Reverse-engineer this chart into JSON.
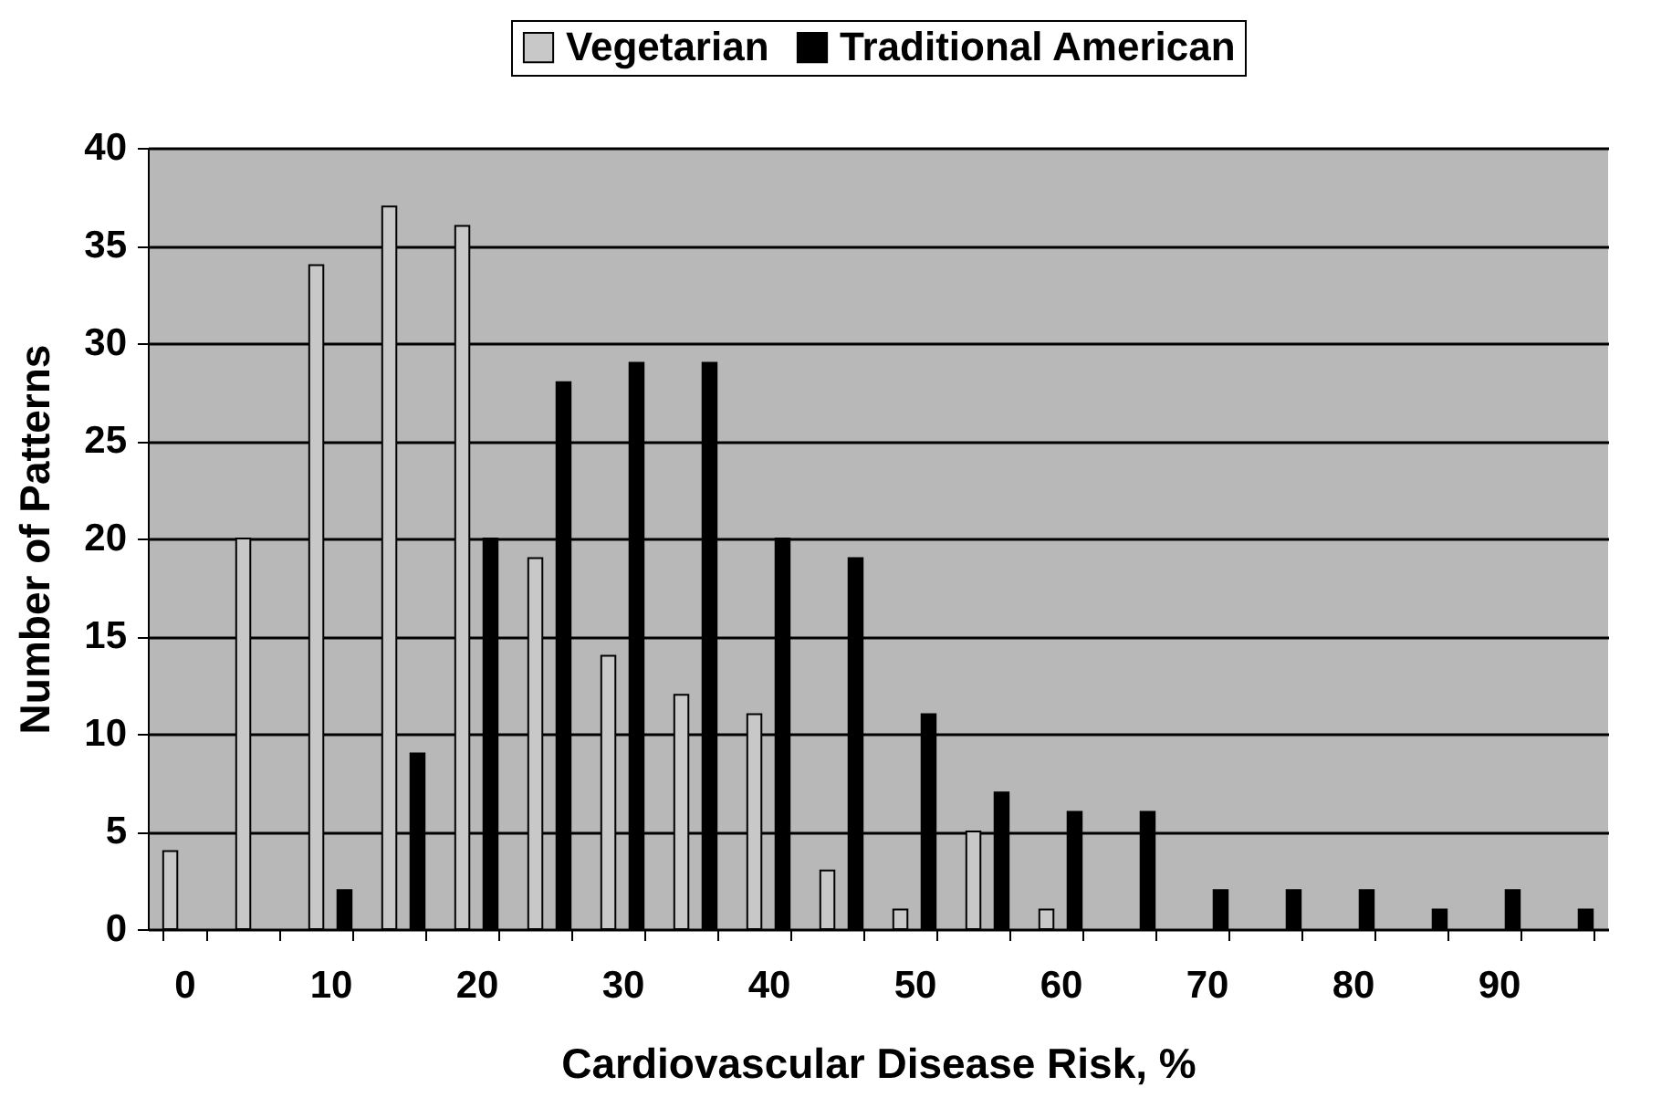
{
  "chart_data": {
    "type": "bar",
    "xlabel": "Cardiovascular Disease Risk, %",
    "ylabel": "Number of Patterns",
    "categories": [
      "0",
      null,
      "10",
      null,
      "20",
      null,
      "30",
      null,
      "40",
      null,
      "50",
      null,
      "60",
      null,
      "70",
      null,
      "80",
      null,
      "90",
      null
    ],
    "series": [
      {
        "name": "Vegetarian",
        "color": "#c8c8c8",
        "values": [
          4,
          20,
          34,
          37,
          36,
          19,
          14,
          12,
          11,
          3,
          1,
          5,
          1,
          null,
          null,
          null,
          null,
          null,
          null,
          null
        ]
      },
      {
        "name": "Traditional American",
        "color": "#000000",
        "values": [
          null,
          null,
          2,
          9,
          20,
          28,
          29,
          29,
          20,
          19,
          11,
          7,
          6,
          6,
          2,
          2,
          2,
          1,
          2,
          1
        ]
      }
    ],
    "ylim": [
      0,
      40
    ],
    "yticks": [
      0,
      5,
      10,
      15,
      20,
      25,
      30,
      35,
      40
    ],
    "grid": "y",
    "legend": "top"
  }
}
